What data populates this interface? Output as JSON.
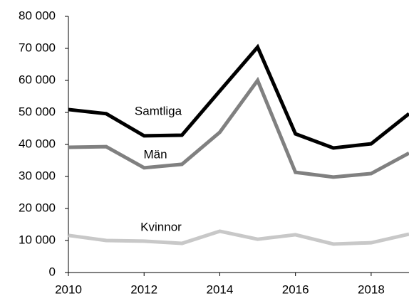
{
  "chart_data": {
    "type": "line",
    "x": [
      2010,
      2011,
      2012,
      2013,
      2014,
      2015,
      2016,
      2017,
      2018,
      2019
    ],
    "xlim": [
      2010,
      2019
    ],
    "xticks": [
      2010,
      2012,
      2014,
      2016,
      2018
    ],
    "ylim": [
      0,
      80000
    ],
    "yticks": [
      0,
      {
        "value": 10000,
        "label": "10 000"
      },
      {
        "value": 20000,
        "label": "20 000"
      },
      {
        "value": 30000,
        "label": "30 000"
      },
      {
        "value": 40000,
        "label": "40 000"
      },
      {
        "value": 50000,
        "label": "50 000"
      },
      {
        "value": 60000,
        "label": "60 000"
      },
      {
        "value": 70000,
        "label": "70 000"
      },
      {
        "value": 80000,
        "label": "80 000"
      }
    ],
    "grid": false,
    "series": [
      {
        "name": "Samtliga",
        "color": "#000000",
        "values": [
          50900,
          49600,
          42700,
          42900,
          56700,
          70400,
          43300,
          38900,
          40200,
          49600
        ]
      },
      {
        "name": "Män",
        "color": "#808080",
        "values": [
          39100,
          39300,
          32700,
          33800,
          43800,
          60000,
          31300,
          29800,
          30900,
          37300
        ]
      },
      {
        "name": "Kvinnor",
        "color": "#c8c8c8",
        "values": [
          11600,
          10000,
          9800,
          9100,
          12900,
          10400,
          11800,
          8900,
          9300,
          12000
        ]
      }
    ]
  }
}
